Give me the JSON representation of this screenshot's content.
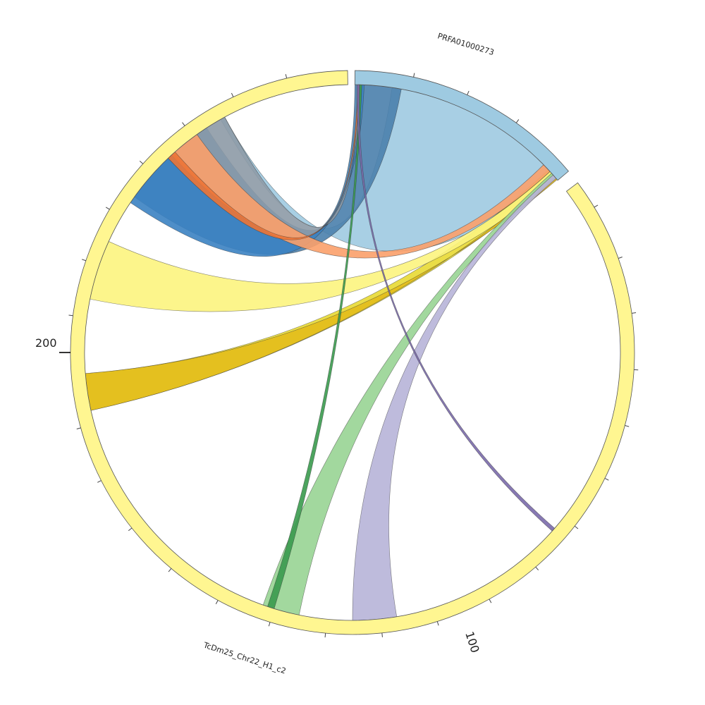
{
  "segments": [
    {
      "name": "PRFA01000273",
      "color": "#9ecae1"
    },
    {
      "name": "TcDm25_Chr22_H1_c2",
      "color": "#fff691"
    }
  ],
  "tick_labels": {
    "t100": "100",
    "t200": "200"
  },
  "links": [
    {
      "id": "link-light-blue",
      "color": "#9ecae1"
    },
    {
      "id": "link-dark-blue",
      "color": "#4a7fac"
    },
    {
      "id": "link-blue",
      "color": "#3b82c2"
    },
    {
      "id": "link-gray",
      "color": "#8d9aa6"
    },
    {
      "id": "link-olive-yellow",
      "color": "#e8d933"
    },
    {
      "id": "link-yellow",
      "color": "#fcf47e"
    },
    {
      "id": "link-gold",
      "color": "#e3bd1b"
    },
    {
      "id": "link-orange",
      "color": "#fba06a"
    },
    {
      "id": "link-dark-orange",
      "color": "#ec7436"
    },
    {
      "id": "link-light-green",
      "color": "#98d494"
    },
    {
      "id": "link-dark-green",
      "color": "#3a9a4e"
    },
    {
      "id": "link-lavender",
      "color": "#b7b4d8"
    },
    {
      "id": "link-purple",
      "color": "#7a6aab"
    }
  ]
}
